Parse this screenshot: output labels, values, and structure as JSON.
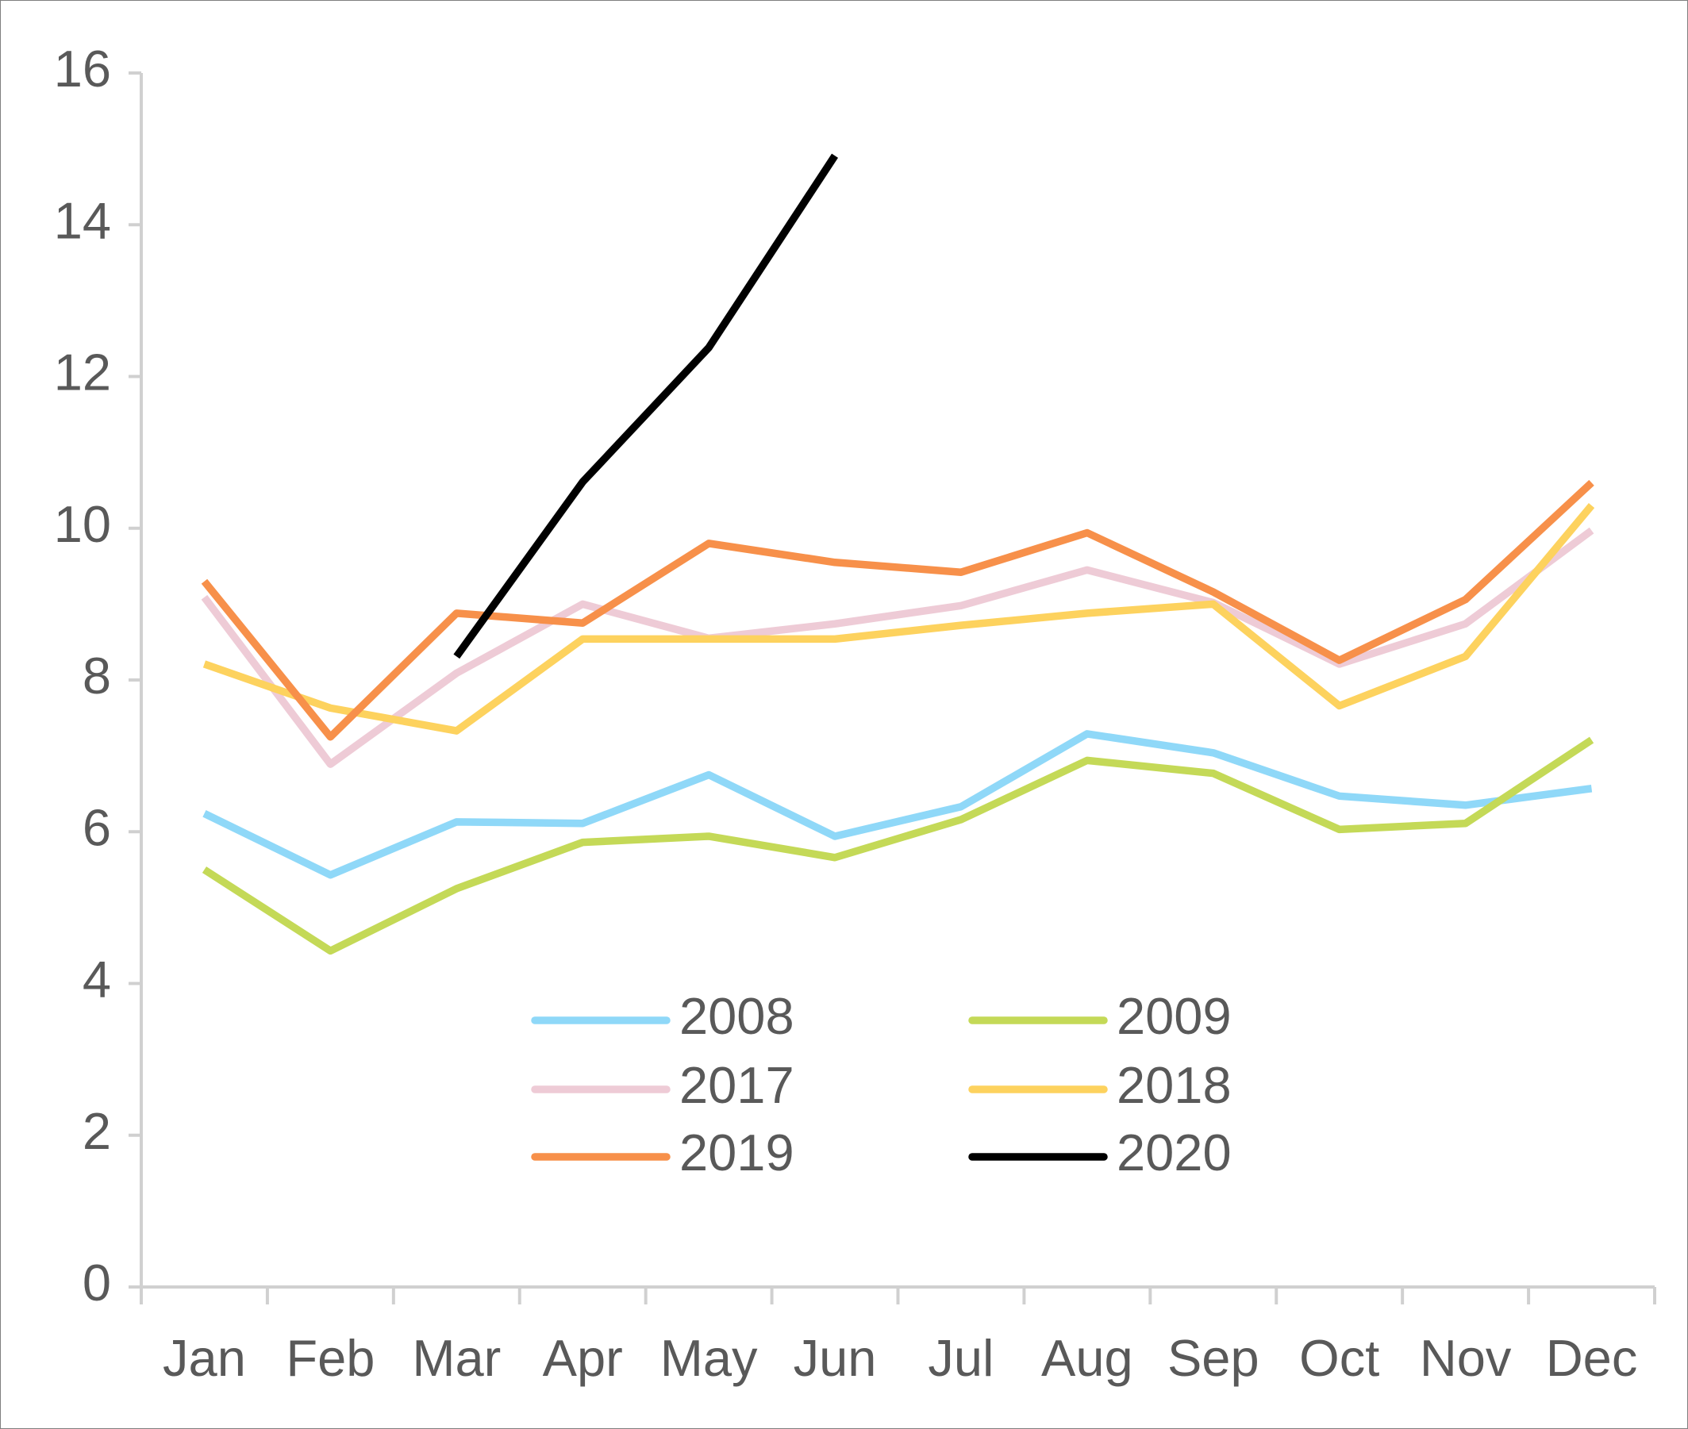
{
  "chart_data": {
    "type": "line",
    "categories": [
      "Jan",
      "Feb",
      "Mar",
      "Apr",
      "May",
      "Jun",
      "Jul",
      "Aug",
      "Sep",
      "Oct",
      "Nov",
      "Dec"
    ],
    "series": [
      {
        "name": "2008",
        "color": "#8fd8f8",
        "values": [
          6.24,
          5.43,
          6.13,
          6.11,
          6.75,
          5.94,
          6.33,
          7.29,
          7.04,
          6.47,
          6.35,
          6.57
        ]
      },
      {
        "name": "2009",
        "color": "#c4d957",
        "values": [
          5.5,
          4.43,
          5.25,
          5.86,
          5.94,
          5.66,
          6.16,
          6.94,
          6.77,
          6.03,
          6.11,
          7.21
        ]
      },
      {
        "name": "2017",
        "color": "#eecbd6",
        "values": [
          9.09,
          6.89,
          8.09,
          9.0,
          8.55,
          8.74,
          8.98,
          9.45,
          9.02,
          8.21,
          8.74,
          9.97
        ]
      },
      {
        "name": "2018",
        "color": "#fdd25e",
        "values": [
          8.21,
          7.63,
          7.33,
          8.54,
          8.54,
          8.54,
          8.72,
          8.88,
          9.0,
          7.66,
          8.31,
          10.3
        ]
      },
      {
        "name": "2019",
        "color": "#f7904a",
        "values": [
          9.3,
          7.25,
          8.88,
          8.75,
          9.8,
          9.55,
          9.42,
          9.94,
          9.16,
          8.26,
          9.06,
          10.6
        ]
      },
      {
        "name": "2020",
        "color": "#000000",
        "values": [
          null,
          null,
          8.31,
          10.61,
          12.38,
          14.91,
          null,
          null,
          null,
          null,
          null,
          null
        ]
      }
    ],
    "ylim": [
      0,
      16
    ],
    "yticks": [
      0,
      2,
      4,
      6,
      8,
      10,
      12,
      14,
      16
    ],
    "grid": false,
    "legend_position": "lower center"
  }
}
